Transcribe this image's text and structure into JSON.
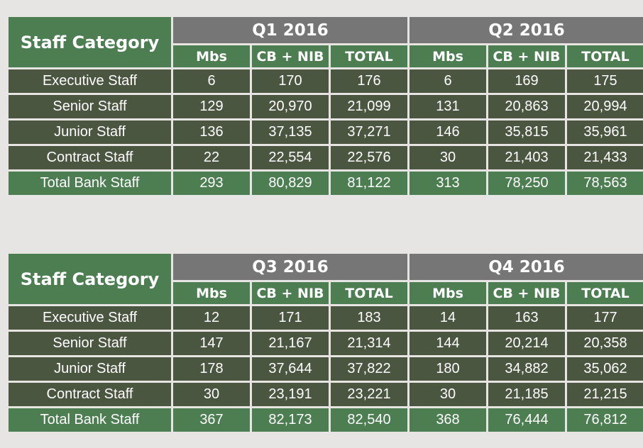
{
  "tables": [
    {
      "category_header": "Staff Category",
      "quarters": [
        {
          "label": "Q1 2016",
          "columns": [
            "Mbs",
            "CB + NIB",
            "TOTAL"
          ]
        },
        {
          "label": "Q2 2016",
          "columns": [
            "Mbs",
            "CB + NIB",
            "TOTAL"
          ]
        }
      ],
      "rows": [
        {
          "category": "Executive Staff",
          "values": [
            "6",
            "170",
            "176",
            "6",
            "169",
            "175"
          ]
        },
        {
          "category": "Senior Staff",
          "values": [
            "129",
            "20,970",
            "21,099",
            "131",
            "20,863",
            "20,994"
          ]
        },
        {
          "category": "Junior Staff",
          "values": [
            "136",
            "37,135",
            "37,271",
            "146",
            "35,815",
            "35,961"
          ]
        },
        {
          "category": "Contract Staff",
          "values": [
            "22",
            "22,554",
            "22,576",
            "30",
            "21,403",
            "21,433"
          ]
        },
        {
          "category": "Total Bank Staff",
          "values": [
            "293",
            "80,829",
            "81,122",
            "313",
            "78,250",
            "78,563"
          ]
        }
      ]
    },
    {
      "category_header": "Staff Category",
      "quarters": [
        {
          "label": "Q3 2016",
          "columns": [
            "Mbs",
            "CB + NIB",
            "TOTAL"
          ]
        },
        {
          "label": "Q4 2016",
          "columns": [
            "Mbs",
            "CB + NIB",
            "TOTAL"
          ]
        }
      ],
      "rows": [
        {
          "category": "Executive Staff",
          "values": [
            "12",
            "171",
            "183",
            "14",
            "163",
            "177"
          ]
        },
        {
          "category": "Senior Staff",
          "values": [
            "147",
            "21,167",
            "21,314",
            "144",
            "20,214",
            "20,358"
          ]
        },
        {
          "category": "Junior Staff",
          "values": [
            "178",
            "37,644",
            "37,822",
            "180",
            "34,882",
            "35,062"
          ]
        },
        {
          "category": "Contract Staff",
          "values": [
            "30",
            "23,191",
            "23,221",
            "30",
            "21,185",
            "21,215"
          ]
        },
        {
          "category": "Total Bank Staff",
          "values": [
            "367",
            "82,173",
            "82,540",
            "368",
            "76,444",
            "76,812"
          ]
        }
      ]
    }
  ],
  "colors": {
    "background": "#e6e5e3",
    "header_green": "#4c7e52",
    "quarter_gray": "#767676",
    "row_dark": "#4b5641",
    "text": "#ffffff"
  }
}
